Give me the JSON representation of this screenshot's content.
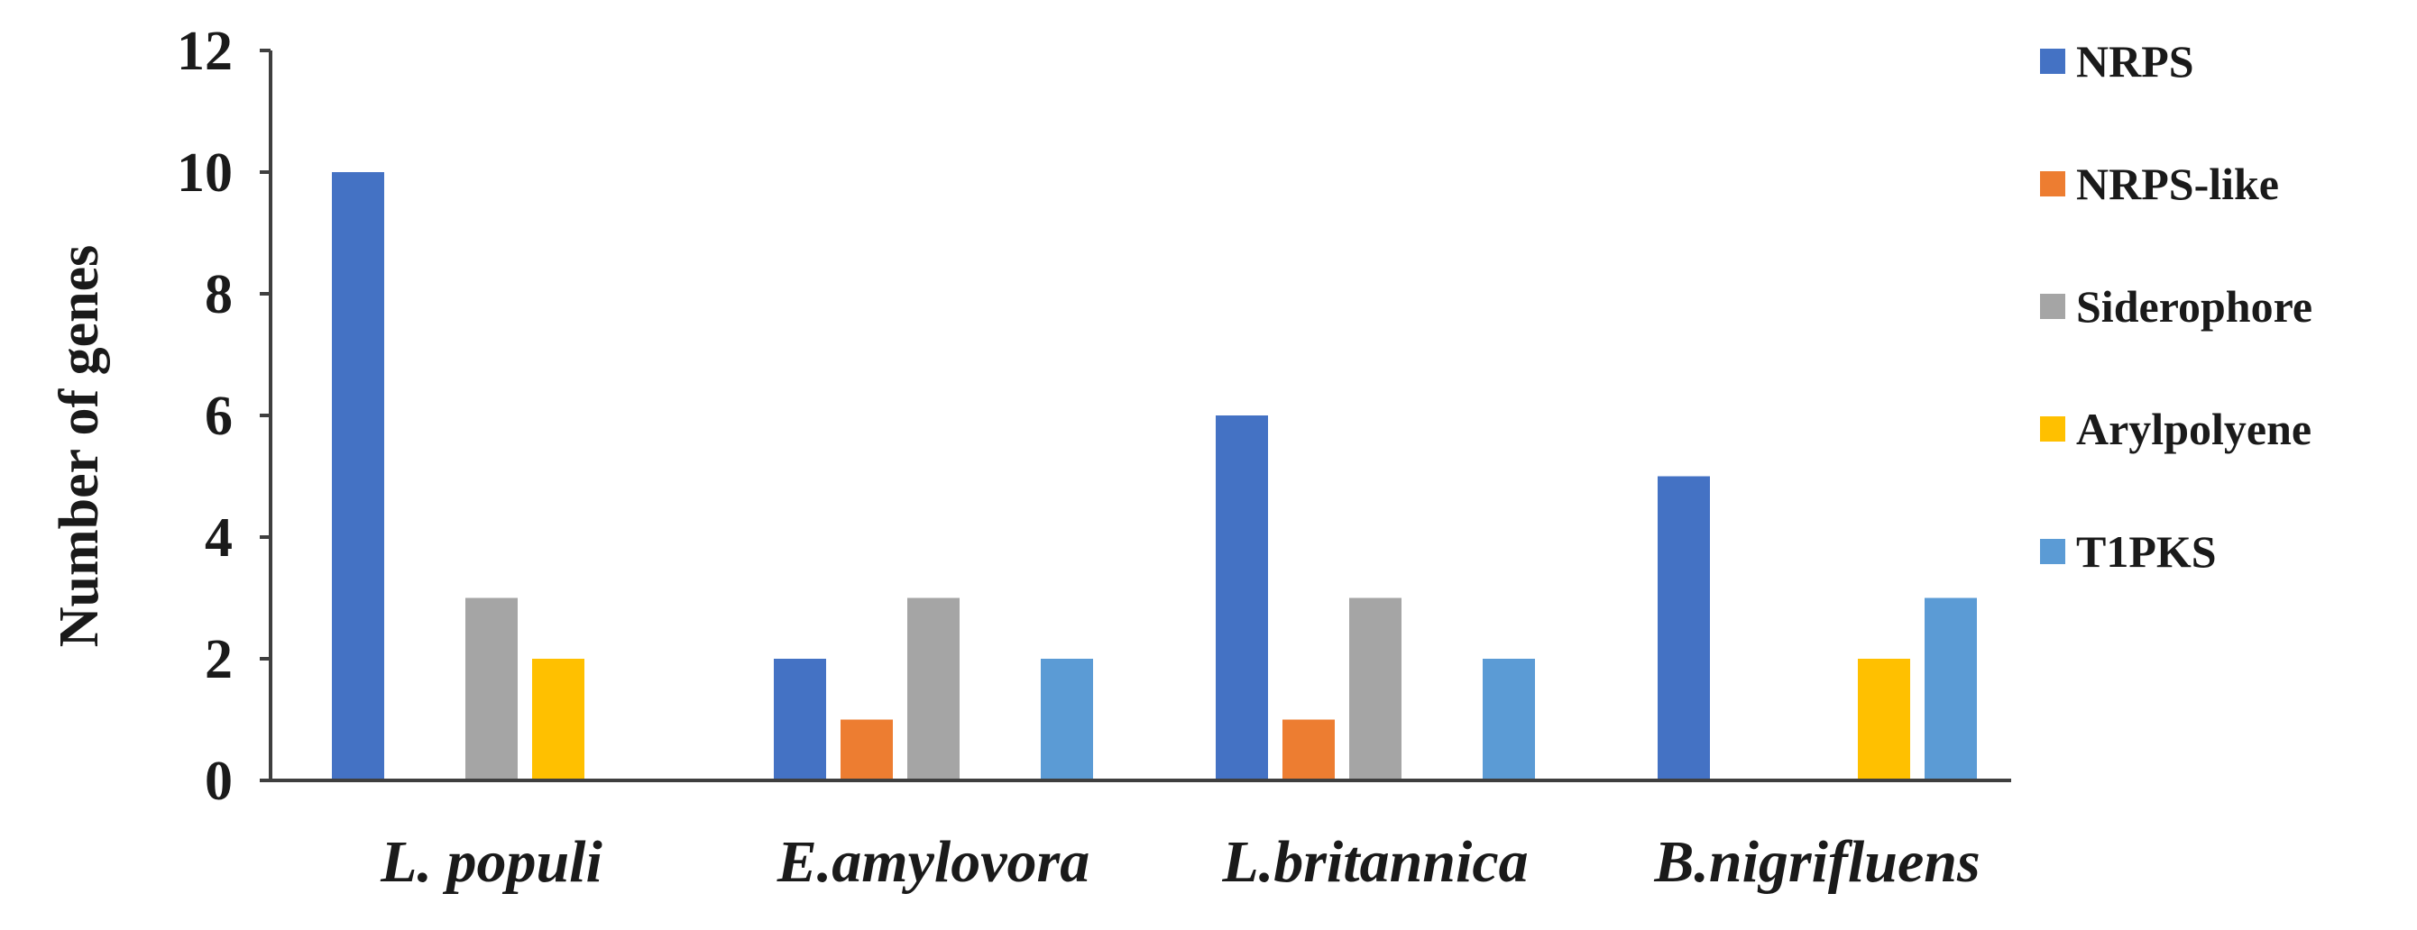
{
  "chart_data": {
    "type": "bar",
    "title": "",
    "xlabel": "",
    "ylabel": "Number of genes",
    "ylim": [
      0,
      12
    ],
    "yticks": [
      0,
      2,
      4,
      6,
      8,
      10,
      12
    ],
    "grid": false,
    "legend_position": "right",
    "categories": [
      "L. populi",
      "E.amylovora",
      "L.britannica",
      "B.nigrifluens"
    ],
    "series": [
      {
        "name": "NRPS",
        "color": "#4472C4",
        "values": [
          10,
          2,
          6,
          5
        ]
      },
      {
        "name": "NRPS-like",
        "color": "#ED7D31",
        "values": [
          0,
          1,
          1,
          0
        ]
      },
      {
        "name": "Siderophore",
        "color": "#A5A5A5",
        "values": [
          3,
          3,
          3,
          0
        ]
      },
      {
        "name": "Arylpolyene",
        "color": "#FFC000",
        "values": [
          2,
          0,
          0,
          2
        ]
      },
      {
        "name": "T1PKS",
        "color": "#5B9BD5",
        "values": [
          0,
          2,
          2,
          3
        ]
      }
    ]
  }
}
